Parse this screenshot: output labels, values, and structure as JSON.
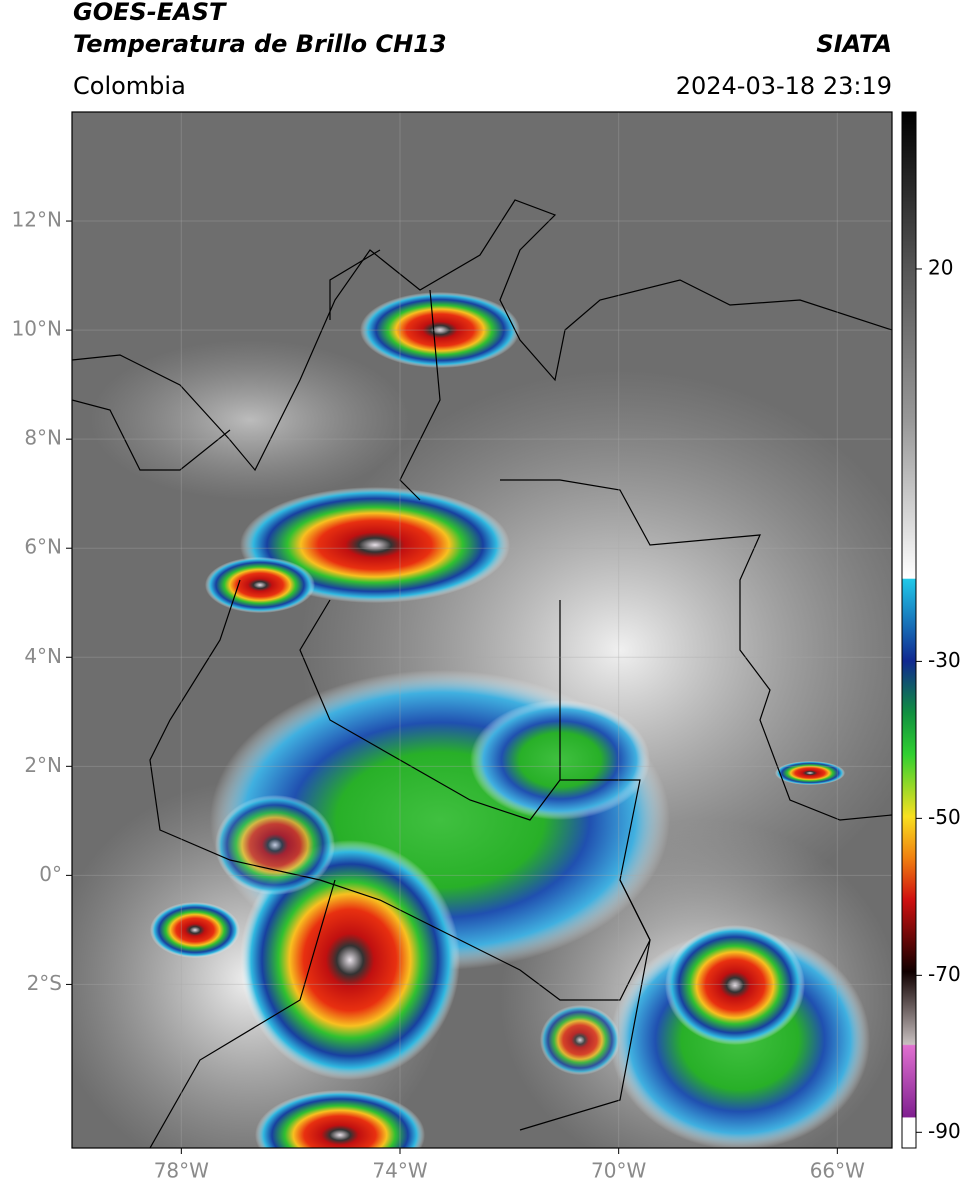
{
  "header": {
    "title": "GOES-EAST",
    "subtitle": "Temperatura de Brillo CH13",
    "source": "SIATA",
    "region": "Colombia",
    "datetime": "2024-03-18 23:19"
  },
  "map": {
    "xlim": [
      -80,
      -65
    ],
    "ylim": [
      -5,
      14
    ],
    "xticks": [
      {
        "value": -78,
        "label": "78°W"
      },
      {
        "value": -74,
        "label": "74°W"
      },
      {
        "value": -70,
        "label": "70°W"
      },
      {
        "value": -66,
        "label": "66°W"
      }
    ],
    "yticks": [
      {
        "value": 12,
        "label": "12°N"
      },
      {
        "value": 10,
        "label": "10°N"
      },
      {
        "value": 8,
        "label": "8°N"
      },
      {
        "value": 6,
        "label": "6°N"
      },
      {
        "value": 4,
        "label": "4°N"
      },
      {
        "value": 2,
        "label": "2°N"
      },
      {
        "value": 0,
        "label": "0°"
      },
      {
        "value": -2,
        "label": "2°S"
      }
    ],
    "grid": true
  },
  "colorbar": {
    "lim": [
      -92,
      40
    ],
    "ticks": [
      20,
      -30,
      -50,
      -70,
      -90
    ]
  }
}
